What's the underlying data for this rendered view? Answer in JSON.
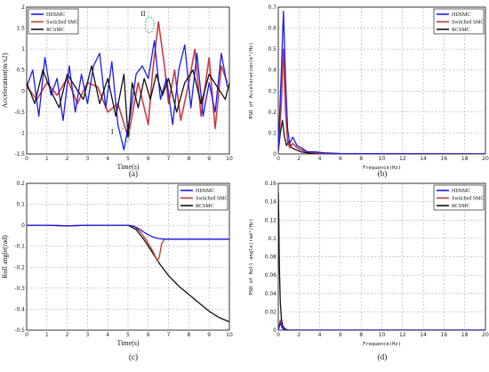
{
  "colors": {
    "hdsmc": "#1a1aee",
    "switched": "#c0392b",
    "rcsmc": "#111111",
    "fill_overlay": "#ff66cc"
  },
  "chart_data": [
    {
      "id": "a",
      "type": "line",
      "panel_label": "(a)",
      "xlabel": "Time(s)",
      "ylabel": "Acceleration(m/s2)",
      "xlim": [
        0,
        10
      ],
      "ylim": [
        -1.5,
        2
      ],
      "xticks": [
        0,
        1,
        2,
        3,
        4,
        5,
        6,
        7,
        8,
        9,
        10
      ],
      "yticks": [
        -1.5,
        -1,
        -0.5,
        0,
        0.5,
        1,
        1.5,
        2
      ],
      "ytick_labels": [
        "-1.5",
        "-1",
        "-0.5",
        "0",
        "0.5",
        "1",
        "1.5",
        "2"
      ],
      "grid": true,
      "legend": "top-left",
      "annotations": [
        {
          "text": "I",
          "x": 4.6,
          "y": -1.0
        },
        {
          "text": "II",
          "x": 5.8,
          "y": 1.75
        }
      ],
      "series": [
        {
          "name": "HDSMC",
          "x": [
            0,
            0.3,
            0.6,
            0.9,
            1.2,
            1.5,
            1.8,
            2.1,
            2.4,
            2.7,
            3.0,
            3.3,
            3.6,
            3.9,
            4.2,
            4.5,
            4.8,
            5.1,
            5.4,
            5.7,
            6.0,
            6.3,
            6.6,
            6.9,
            7.2,
            7.5,
            7.8,
            8.1,
            8.4,
            8.7,
            9.0,
            9.3,
            9.6,
            9.9
          ],
          "y": [
            0.1,
            0.5,
            -0.6,
            0.8,
            -0.1,
            0.3,
            -0.7,
            0.6,
            -0.5,
            0.4,
            -0.3,
            0.6,
            0.9,
            -0.4,
            0.7,
            -0.8,
            -1.4,
            -0.6,
            0.4,
            0.6,
            0.3,
            1.2,
            -0.2,
            0.3,
            -0.8,
            0.5,
            1.1,
            -0.4,
            0.9,
            -0.6,
            0.2,
            -0.5,
            0.9,
            0.1
          ]
        },
        {
          "name": "Switched SMC",
          "x": [
            0,
            0.5,
            1.0,
            1.5,
            2.0,
            2.5,
            3.0,
            3.5,
            4.0,
            4.5,
            5.0,
            5.5,
            6.0,
            6.2,
            6.5,
            6.8,
            7.0,
            7.3,
            7.6,
            8.0,
            8.3,
            8.6,
            9.0,
            9.3,
            9.6,
            9.9
          ],
          "y": [
            0.1,
            -0.2,
            0.2,
            -0.1,
            0.3,
            -0.3,
            0.2,
            0.1,
            -0.5,
            -0.3,
            -1.1,
            0.2,
            -0.8,
            0.4,
            1.65,
            0.6,
            -0.3,
            0.5,
            -0.7,
            0.2,
            1.0,
            -0.6,
            0.8,
            -0.9,
            0.6,
            0.2
          ]
        },
        {
          "name": "RCSMC",
          "x": [
            0,
            0.4,
            0.8,
            1.2,
            1.6,
            2.0,
            2.4,
            2.8,
            3.2,
            3.6,
            4.0,
            4.4,
            4.8,
            5.0,
            5.2,
            5.5,
            5.8,
            6.1,
            6.4,
            6.7,
            7.0,
            7.4,
            7.8,
            8.2,
            8.6,
            9.0,
            9.4,
            9.8,
            10
          ],
          "y": [
            0.2,
            -0.3,
            0.5,
            0.0,
            -0.4,
            0.4,
            0.1,
            -0.2,
            0.6,
            -0.3,
            0.3,
            -0.6,
            0.4,
            -1.1,
            0.2,
            -0.4,
            0.3,
            -0.2,
            0.4,
            -0.1,
            0.3,
            -0.5,
            0.2,
            0.5,
            -0.3,
            0.4,
            0.1,
            -0.2,
            0.2
          ]
        }
      ]
    },
    {
      "id": "b",
      "type": "line",
      "panel_label": "(b)",
      "xlabel": "Frequence(Hz)",
      "ylabel": "PSD of Acceleration(m²/Hz)",
      "xlim": [
        0,
        20
      ],
      "ylim": [
        0,
        0.7
      ],
      "xticks": [
        0,
        2,
        4,
        6,
        8,
        10,
        12,
        14,
        16,
        18,
        20
      ],
      "yticks": [
        0,
        0.1,
        0.2,
        0.3,
        0.4,
        0.5,
        0.6,
        0.7
      ],
      "ytick_labels": [
        "0",
        "0.1",
        "0.2",
        "0.3",
        "0.4",
        "0.5",
        "0.6",
        "0.7"
      ],
      "grid": true,
      "legend": "top-right",
      "series": [
        {
          "name": "HDSMC",
          "x": [
            0,
            0.3,
            0.5,
            0.7,
            0.9,
            1.1,
            1.4,
            1.8,
            2.2,
            2.8,
            3.5,
            4.5,
            6,
            20
          ],
          "y": [
            0.02,
            0.4,
            0.68,
            0.35,
            0.12,
            0.05,
            0.08,
            0.04,
            0.03,
            0.01,
            0.01,
            0.005,
            0.002,
            0.0
          ]
        },
        {
          "name": "Switched SMC",
          "x": [
            0,
            0.3,
            0.5,
            0.7,
            0.9,
            1.1,
            1.4,
            1.8,
            2.2,
            2.8,
            3.5,
            4.5,
            6,
            20
          ],
          "y": [
            0.01,
            0.25,
            0.5,
            0.2,
            0.06,
            0.03,
            0.05,
            0.03,
            0.02,
            0.01,
            0.005,
            0.003,
            0.001,
            0.0
          ]
        },
        {
          "name": "RCSMC",
          "x": [
            0,
            0.2,
            0.4,
            0.6,
            0.8,
            1.0,
            1.3,
            1.7,
            2.2,
            2.8,
            3.5,
            4.5,
            6,
            20
          ],
          "y": [
            0.01,
            0.1,
            0.16,
            0.08,
            0.04,
            0.06,
            0.03,
            0.02,
            0.01,
            0.005,
            0.002,
            0.001,
            0.0,
            0.0
          ]
        }
      ]
    },
    {
      "id": "c",
      "type": "line",
      "panel_label": "(c)",
      "xlabel": "Time(s)",
      "ylabel": "Roll angle(rad)",
      "xlim": [
        0,
        10
      ],
      "ylim": [
        -0.5,
        0.2
      ],
      "xticks": [
        0,
        1,
        2,
        3,
        4,
        5,
        6,
        7,
        8,
        9,
        10
      ],
      "yticks": [
        -0.5,
        -0.4,
        -0.3,
        -0.2,
        -0.1,
        0,
        0.1,
        0.2
      ],
      "ytick_labels": [
        "-0.5",
        "-0.4",
        "-0.3",
        "-0.2",
        "-0.1",
        "0",
        "0.1",
        "0.2"
      ],
      "grid": true,
      "legend": "top-right",
      "series": [
        {
          "name": "HDSMC",
          "x": [
            0,
            1,
            2,
            3,
            4,
            5,
            5.3,
            5.6,
            5.9,
            6.2,
            6.5,
            6.8,
            7,
            8,
            9,
            10
          ],
          "y": [
            0,
            0,
            -0.003,
            0,
            0,
            0,
            -0.005,
            -0.02,
            -0.04,
            -0.055,
            -0.063,
            -0.066,
            -0.066,
            -0.066,
            -0.066,
            -0.066
          ]
        },
        {
          "name": "Switched SMC",
          "x": [
            0,
            1,
            2,
            3,
            4,
            5,
            5.3,
            5.6,
            5.9,
            6.2,
            6.45,
            6.55,
            6.65,
            6.8,
            7,
            8,
            9,
            10
          ],
          "y": [
            0,
            0,
            -0.003,
            0,
            0,
            0,
            -0.005,
            -0.03,
            -0.07,
            -0.12,
            -0.17,
            -0.15,
            -0.09,
            -0.066,
            -0.066,
            -0.066,
            -0.066,
            -0.066
          ]
        },
        {
          "name": "RCSMC",
          "x": [
            0,
            1,
            2,
            3,
            4,
            5,
            5.4,
            5.8,
            6.2,
            6.6,
            7,
            7.5,
            8,
            8.5,
            9,
            9.5,
            10
          ],
          "y": [
            0,
            0,
            -0.003,
            0,
            0,
            0,
            -0.02,
            -0.07,
            -0.13,
            -0.19,
            -0.24,
            -0.29,
            -0.33,
            -0.37,
            -0.41,
            -0.44,
            -0.46
          ]
        }
      ]
    },
    {
      "id": "d",
      "type": "line",
      "panel_label": "(d)",
      "xlabel": "Frequence(Hz)",
      "ylabel": "PSD of Roll angle(rad²/Hz)",
      "xlim": [
        0,
        20
      ],
      "ylim": [
        0,
        0.16
      ],
      "xticks": [
        0,
        2,
        4,
        6,
        8,
        10,
        12,
        14,
        16,
        18,
        20
      ],
      "yticks": [
        0,
        0.02,
        0.04,
        0.06,
        0.08,
        0.1,
        0.12,
        0.14,
        0.16
      ],
      "ytick_labels": [
        "0",
        "0.02",
        "0.04",
        "0.06",
        "0.08",
        "0.1",
        "0.12",
        "0.14",
        "0.16"
      ],
      "grid": true,
      "legend": "top-right",
      "series": [
        {
          "name": "HDSMC",
          "x": [
            0,
            0.1,
            0.2,
            0.35,
            0.5,
            0.8,
            1.2,
            20
          ],
          "y": [
            0.0,
            0.004,
            0.008,
            0.003,
            0.001,
            0.0,
            0.0,
            0.0
          ]
        },
        {
          "name": "Switched SMC",
          "x": [
            0,
            0.1,
            0.2,
            0.35,
            0.5,
            0.8,
            1.2,
            20
          ],
          "y": [
            0.0,
            0.006,
            0.011,
            0.004,
            0.001,
            0.0,
            0.0,
            0.0
          ]
        },
        {
          "name": "RCSMC",
          "x": [
            0,
            0.05,
            0.1,
            0.2,
            0.3,
            0.45,
            0.7,
            1.0,
            20
          ],
          "y": [
            0.15,
            0.12,
            0.07,
            0.03,
            0.012,
            0.004,
            0.001,
            0.0,
            0.0
          ]
        }
      ]
    }
  ]
}
